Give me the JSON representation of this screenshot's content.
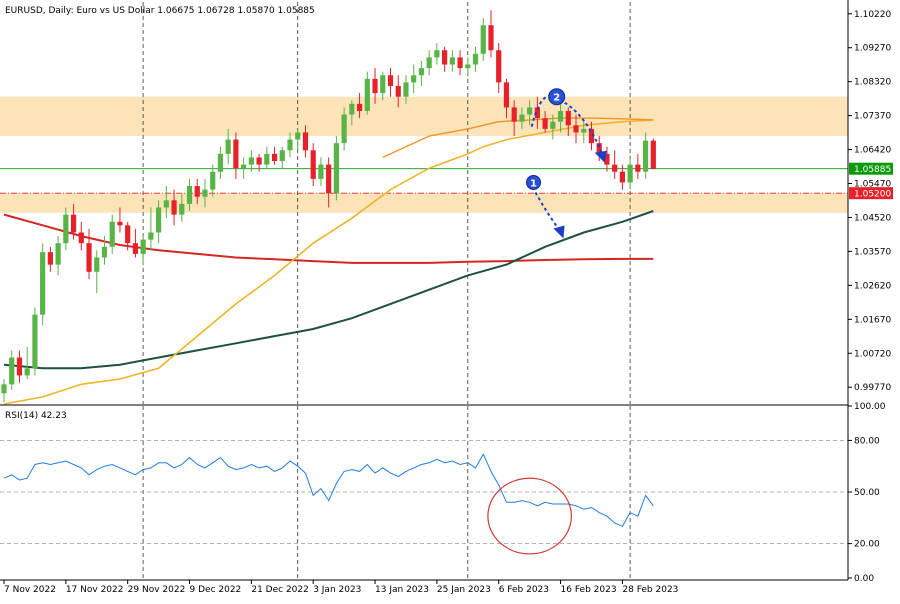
{
  "chart_data": {
    "type": "candlestick",
    "header": {
      "text": "EURUSD, Daily:  Euro vs US Dollar  1.06675 1.06728 1.05870 1.05885"
    },
    "main_pane": {
      "y_ticks": [
        1.1022,
        1.0927,
        1.0832,
        1.0737,
        1.0642,
        1.0547,
        1.0452,
        1.0357,
        1.0262,
        1.0167,
        1.0072,
        0.9977
      ],
      "ylim": [
        0.993,
        1.1055
      ],
      "current_price": {
        "value": 1.05885,
        "label": "1.05885",
        "color": "#0a9a0a"
      },
      "level_line": {
        "value": 1.052,
        "label": "1.05200",
        "color": "#e8202a"
      },
      "zones": [
        {
          "from": 1.068,
          "to": 1.079,
          "color": "#fde3b8"
        },
        {
          "from": 1.0465,
          "to": 1.052,
          "color": "#fde3b8"
        }
      ],
      "colors": {
        "bull": "#58b447",
        "bear": "#e8202a",
        "ma_fast": "#f29325",
        "ma_mid": "#f0b429",
        "ma_slow": "#1f5040",
        "ma_long": "#d52624"
      },
      "candles": [
        [
          0.996,
          1.0,
          0.9935,
          0.9985
        ],
        [
          0.9985,
          1.008,
          0.997,
          1.006
        ],
        [
          1.006,
          1.008,
          0.999,
          1.001
        ],
        [
          1.001,
          1.009,
          1.0,
          1.003
        ],
        [
          1.003,
          1.02,
          1.001,
          1.018
        ],
        [
          1.018,
          1.038,
          1.015,
          1.0355
        ],
        [
          1.0355,
          1.037,
          1.03,
          1.032
        ],
        [
          1.032,
          1.04,
          1.029,
          1.038
        ],
        [
          1.038,
          1.048,
          1.036,
          1.046
        ],
        [
          1.046,
          1.049,
          1.039,
          1.041
        ],
        [
          1.041,
          1.044,
          1.036,
          1.038
        ],
        [
          1.038,
          1.042,
          1.028,
          1.03
        ],
        [
          1.03,
          1.036,
          1.024,
          1.034
        ],
        [
          1.034,
          1.04,
          1.032,
          1.037
        ],
        [
          1.037,
          1.046,
          1.035,
          1.044
        ],
        [
          1.044,
          1.048,
          1.041,
          1.043
        ],
        [
          1.043,
          1.044,
          1.036,
          1.038
        ],
        [
          1.038,
          1.042,
          1.034,
          1.035
        ],
        [
          1.035,
          1.04,
          1.032,
          1.039
        ],
        [
          1.039,
          1.048,
          1.036,
          1.041
        ],
        [
          1.041,
          1.05,
          1.038,
          1.048
        ],
        [
          1.048,
          1.054,
          1.045,
          1.05
        ],
        [
          1.05,
          1.053,
          1.043,
          1.046
        ],
        [
          1.046,
          1.052,
          1.044,
          1.049
        ],
        [
          1.049,
          1.056,
          1.047,
          1.054
        ],
        [
          1.054,
          1.056,
          1.049,
          1.051
        ],
        [
          1.051,
          1.056,
          1.048,
          1.053
        ],
        [
          1.053,
          1.06,
          1.051,
          1.058
        ],
        [
          1.058,
          1.065,
          1.056,
          1.063
        ],
        [
          1.063,
          1.07,
          1.06,
          1.067
        ],
        [
          1.067,
          1.069,
          1.056,
          1.059
        ],
        [
          1.059,
          1.062,
          1.056,
          1.06
        ],
        [
          1.06,
          1.064,
          1.058,
          1.062
        ],
        [
          1.062,
          1.063,
          1.058,
          1.06
        ],
        [
          1.06,
          1.065,
          1.059,
          1.063
        ],
        [
          1.063,
          1.065,
          1.06,
          1.061
        ],
        [
          1.061,
          1.065,
          1.059,
          1.064
        ],
        [
          1.064,
          1.069,
          1.062,
          1.067
        ],
        [
          1.067,
          1.07,
          1.064,
          1.069
        ],
        [
          1.069,
          1.071,
          1.062,
          1.064
        ],
        [
          1.064,
          1.066,
          1.054,
          1.056
        ],
        [
          1.056,
          1.062,
          1.054,
          1.06
        ],
        [
          1.06,
          1.062,
          1.048,
          1.052
        ],
        [
          1.052,
          1.068,
          1.05,
          1.066
        ],
        [
          1.066,
          1.076,
          1.064,
          1.074
        ],
        [
          1.074,
          1.078,
          1.071,
          1.077
        ],
        [
          1.077,
          1.08,
          1.073,
          1.075
        ],
        [
          1.075,
          1.086,
          1.074,
          1.084
        ],
        [
          1.084,
          1.087,
          1.077,
          1.08
        ],
        [
          1.08,
          1.086,
          1.078,
          1.085
        ],
        [
          1.085,
          1.087,
          1.079,
          1.082
        ],
        [
          1.082,
          1.085,
          1.076,
          1.079
        ],
        [
          1.079,
          1.085,
          1.077,
          1.083
        ],
        [
          1.083,
          1.088,
          1.08,
          1.085
        ],
        [
          1.085,
          1.089,
          1.082,
          1.087
        ],
        [
          1.087,
          1.092,
          1.085,
          1.09
        ],
        [
          1.09,
          1.094,
          1.088,
          1.092
        ],
        [
          1.092,
          1.093,
          1.086,
          1.088
        ],
        [
          1.088,
          1.092,
          1.086,
          1.09
        ],
        [
          1.09,
          1.092,
          1.085,
          1.087
        ],
        [
          1.087,
          1.09,
          1.085,
          1.088
        ],
        [
          1.088,
          1.093,
          1.086,
          1.091
        ],
        [
          1.091,
          1.101,
          1.089,
          1.099
        ],
        [
          1.099,
          1.1032,
          1.09,
          1.092
        ],
        [
          1.092,
          1.094,
          1.08,
          1.083
        ],
        [
          1.083,
          1.084,
          1.073,
          1.076
        ],
        [
          1.076,
          1.078,
          1.068,
          1.072
        ],
        [
          1.072,
          1.076,
          1.07,
          1.074
        ],
        [
          1.074,
          1.078,
          1.071,
          1.076
        ],
        [
          1.076,
          1.079,
          1.07,
          1.073
        ],
        [
          1.073,
          1.075,
          1.069,
          1.07
        ],
        [
          1.07,
          1.074,
          1.067,
          1.072
        ],
        [
          1.072,
          1.081,
          1.069,
          1.075
        ],
        [
          1.075,
          1.076,
          1.068,
          1.071
        ],
        [
          1.071,
          1.074,
          1.066,
          1.069
        ],
        [
          1.069,
          1.072,
          1.066,
          1.07
        ],
        [
          1.07,
          1.072,
          1.064,
          1.066
        ],
        [
          1.066,
          1.068,
          1.061,
          1.063
        ],
        [
          1.063,
          1.065,
          1.058,
          1.06
        ],
        [
          1.06,
          1.064,
          1.056,
          1.058
        ],
        [
          1.058,
          1.06,
          1.053,
          1.055
        ],
        [
          1.055,
          1.062,
          1.053,
          1.06
        ],
        [
          1.06,
          1.063,
          1.056,
          1.058
        ],
        [
          1.058,
          1.069,
          1.056,
          1.0667
        ],
        [
          1.0667,
          1.0673,
          1.0587,
          1.0589
        ]
      ],
      "ma_fast": [
        [
          49,
          1.062
        ],
        [
          55,
          1.068
        ],
        [
          60,
          1.07
        ],
        [
          64,
          1.072
        ],
        [
          68,
          1.0725
        ],
        [
          72,
          1.073
        ],
        [
          76,
          1.073
        ],
        [
          80,
          1.0728
        ],
        [
          84,
          1.0725
        ]
      ],
      "ma_mid": [
        [
          0,
          0.993
        ],
        [
          5,
          0.995
        ],
        [
          10,
          0.9985
        ],
        [
          15,
          1.0
        ],
        [
          20,
          1.003
        ],
        [
          25,
          1.012
        ],
        [
          30,
          1.021
        ],
        [
          35,
          1.029
        ],
        [
          40,
          1.038
        ],
        [
          45,
          1.045
        ],
        [
          50,
          1.053
        ],
        [
          55,
          1.059
        ],
        [
          60,
          1.063
        ],
        [
          62,
          1.065
        ],
        [
          65,
          1.067
        ],
        [
          70,
          1.069
        ],
        [
          75,
          1.071
        ],
        [
          80,
          1.072
        ],
        [
          84,
          1.0725
        ]
      ],
      "ma_slow": [
        [
          0,
          1.004
        ],
        [
          5,
          1.003
        ],
        [
          10,
          1.003
        ],
        [
          15,
          1.004
        ],
        [
          20,
          1.006
        ],
        [
          25,
          1.008
        ],
        [
          30,
          1.01
        ],
        [
          35,
          1.012
        ],
        [
          40,
          1.014
        ],
        [
          45,
          1.017
        ],
        [
          50,
          1.021
        ],
        [
          55,
          1.025
        ],
        [
          60,
          1.029
        ],
        [
          65,
          1.032
        ],
        [
          70,
          1.037
        ],
        [
          75,
          1.041
        ],
        [
          80,
          1.044
        ],
        [
          84,
          1.047
        ]
      ],
      "ma_long": [
        [
          0,
          1.046
        ],
        [
          5,
          1.043
        ],
        [
          10,
          1.04
        ],
        [
          15,
          1.0375
        ],
        [
          20,
          1.036
        ],
        [
          25,
          1.035
        ],
        [
          30,
          1.034
        ],
        [
          35,
          1.0335
        ],
        [
          40,
          1.033
        ],
        [
          45,
          1.0325
        ],
        [
          50,
          1.0325
        ],
        [
          55,
          1.0325
        ],
        [
          60,
          1.0328
        ],
        [
          65,
          1.033
        ],
        [
          70,
          1.0333
        ],
        [
          75,
          1.0335
        ],
        [
          80,
          1.0336
        ],
        [
          84,
          1.0336
        ]
      ],
      "annotations": [
        {
          "label": "2",
          "x": 71.5,
          "y": 1.079
        },
        {
          "label": "1",
          "x": 68.5,
          "y": 1.055
        }
      ]
    },
    "rsi_pane": {
      "title": "RSI(14) 42.23",
      "y_ticks": [
        100,
        80,
        50,
        20,
        0
      ],
      "ylim": [
        0,
        100
      ],
      "color": "#1f7ee0",
      "levels": [
        80,
        50,
        20
      ],
      "values": [
        58,
        60,
        57,
        58,
        66,
        67,
        66,
        67,
        68,
        66,
        64,
        60,
        63,
        65,
        66,
        64,
        62,
        60,
        63,
        64,
        67,
        67,
        64,
        66,
        70,
        66,
        64,
        67,
        70,
        65,
        63,
        64,
        66,
        64,
        65,
        62,
        64,
        68,
        65,
        61,
        48,
        52,
        45,
        55,
        62,
        63,
        62,
        66,
        61,
        64,
        61,
        59,
        62,
        64,
        66,
        67,
        69,
        67,
        68,
        66,
        67,
        64,
        72,
        62,
        54,
        44,
        44,
        45,
        44,
        42,
        44,
        43,
        43,
        43,
        42,
        40,
        41,
        38,
        36,
        32,
        30,
        38,
        36,
        48,
        42
      ],
      "circle": {
        "cx": 68,
        "cy": 36,
        "rx": 5.4,
        "ry": 22
      }
    },
    "x_labels": [
      {
        "label": "7 Nov 2022",
        "idx": 0
      },
      {
        "label": "17 Nov 2022",
        "idx": 8
      },
      {
        "label": "29 Nov 2022",
        "idx": 16
      },
      {
        "label": "9 Dec 2022",
        "idx": 24
      },
      {
        "label": "21 Dec 2022",
        "idx": 32
      },
      {
        "label": "3 Jan 2023",
        "idx": 40
      },
      {
        "label": "13 Jan 2023",
        "idx": 48
      },
      {
        "label": "25 Jan 2023",
        "idx": 56
      },
      {
        "label": "6 Feb 2023",
        "idx": 64
      },
      {
        "label": "16 Feb 2023",
        "idx": 72
      },
      {
        "label": "28 Feb 2023",
        "idx": 80
      }
    ],
    "v_dashed_idx": [
      18,
      38,
      60,
      81
    ]
  }
}
